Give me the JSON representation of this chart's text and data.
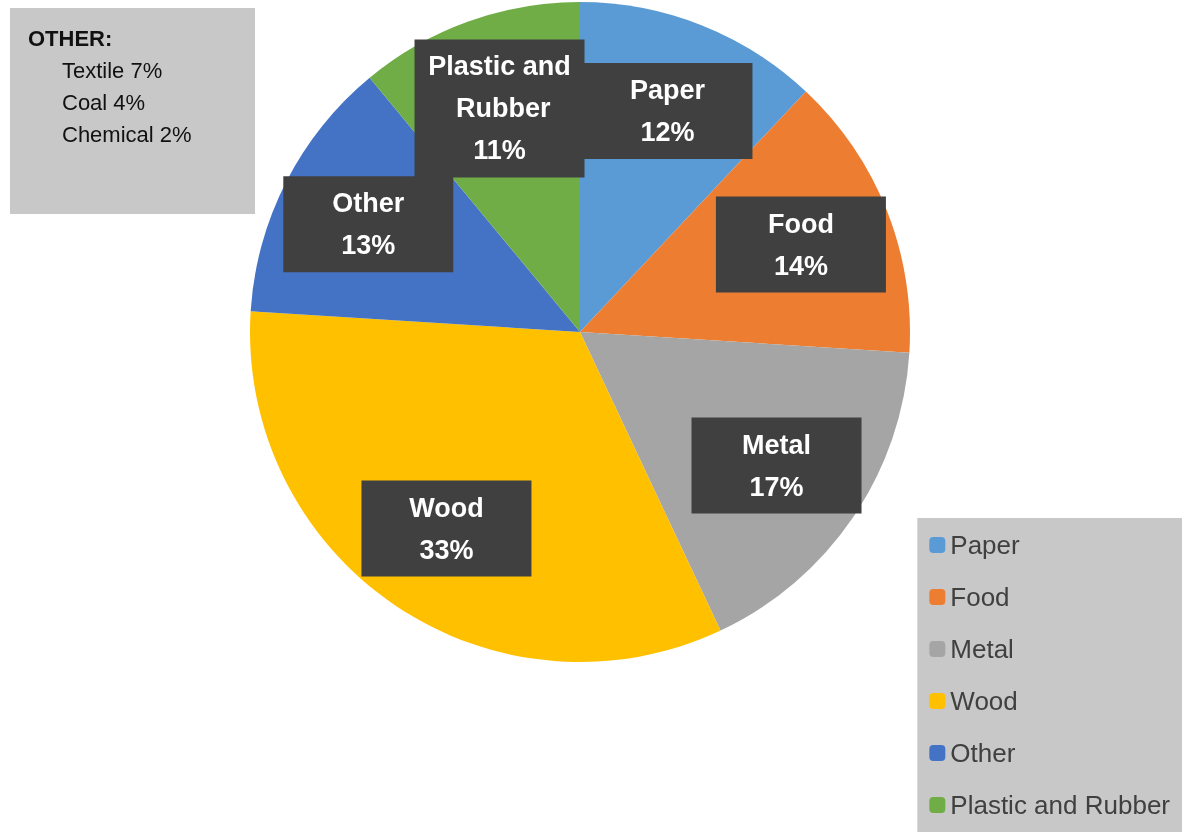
{
  "chart_data": {
    "type": "pie",
    "categories": [
      "Paper",
      "Food",
      "Metal",
      "Wood",
      "Other",
      "Plastic and Rubber"
    ],
    "values": [
      12,
      14,
      17,
      33,
      13,
      11
    ],
    "value_labels": [
      "12%",
      "14%",
      "17%",
      "33%",
      "13%",
      "11%"
    ],
    "colors": [
      "#5b9bd5",
      "#ed7d31",
      "#a5a5a5",
      "#ffc000",
      "#4472c4",
      "#70ad47"
    ],
    "legend": "bottom right",
    "annotations": [
      "OTHER:",
      "Textile 7%",
      "Coal 4%",
      "Chemical 2%"
    ]
  }
}
